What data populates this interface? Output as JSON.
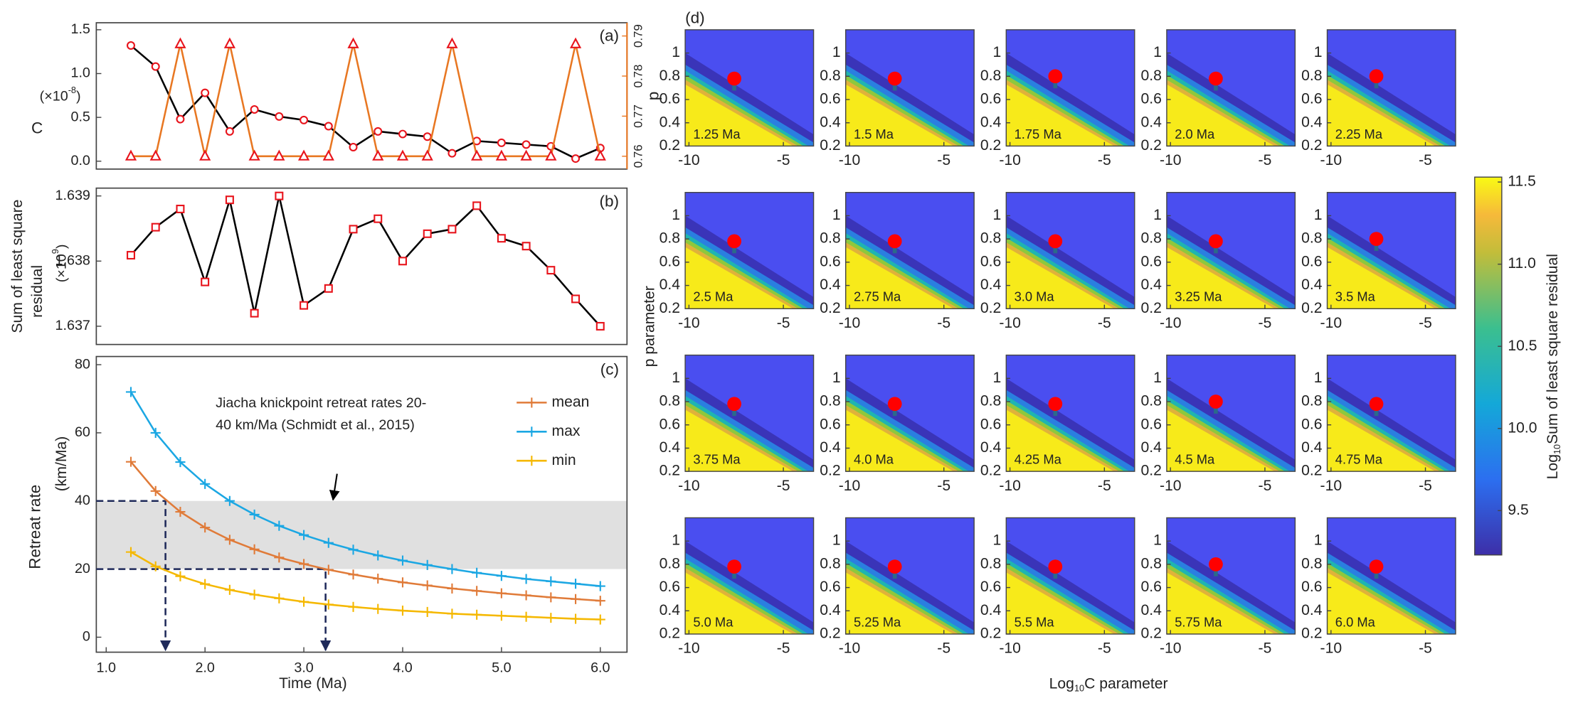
{
  "chart_data": [
    {
      "type": "line",
      "label": "(a)",
      "y_label": "C",
      "y_unit": {
        "base": "(×10",
        "exponent": "-8",
        "close": ")"
      },
      "y2_label": "p",
      "x": [
        1.25,
        1.5,
        1.75,
        2.0,
        2.25,
        2.5,
        2.75,
        3.0,
        3.25,
        3.5,
        3.75,
        4.0,
        4.25,
        4.5,
        4.75,
        5.0,
        5.25,
        5.5,
        5.75,
        6.0
      ],
      "xlim": [
        0.9,
        6.27
      ],
      "ylim": [
        -0.09,
        1.58
      ],
      "yticks": [
        {
          "value": 0,
          "label": "0.0"
        },
        0.5,
        {
          "value": 1,
          "label": "1.0"
        },
        1.5
      ],
      "y2lim": [
        0.7568,
        0.7933
      ],
      "y2ticks": [
        0.76,
        0.77,
        0.78,
        0.79
      ],
      "y2_color": "#e87722",
      "series": [
        {
          "name": "C",
          "color": "#000000",
          "marker": "circle",
          "marker_color": "#e8141c",
          "values": [
            1.32,
            1.08,
            0.48,
            0.78,
            0.34,
            0.59,
            0.51,
            0.47,
            0.4,
            0.16,
            0.34,
            0.31,
            0.28,
            0.09,
            0.23,
            0.21,
            0.19,
            0.17,
            0.03,
            0.15
          ]
        },
        {
          "name": "p",
          "color": "#e87722",
          "marker": "triangle",
          "marker_color": "#e8141c",
          "axis": "y2",
          "values": [
            0.76,
            0.76,
            0.788,
            0.76,
            0.788,
            0.76,
            0.76,
            0.76,
            0.76,
            0.788,
            0.76,
            0.76,
            0.76,
            0.788,
            0.76,
            0.76,
            0.76,
            0.76,
            0.788,
            0.76
          ]
        }
      ]
    },
    {
      "type": "line",
      "label": "(b)",
      "y_label": [
        "Sum of least square",
        "residual"
      ],
      "y_unit": {
        "base": "(×10",
        "exponent": "9",
        "close": ")"
      },
      "x": [
        1.25,
        1.5,
        1.75,
        2.0,
        2.25,
        2.5,
        2.75,
        3.0,
        3.25,
        3.5,
        3.75,
        4.0,
        4.25,
        4.5,
        4.75,
        5.0,
        5.25,
        5.5,
        5.75,
        6.0
      ],
      "xlim": [
        0.9,
        6.27
      ],
      "ylim": [
        1.63672,
        1.63912
      ],
      "yticks": [
        1.637,
        1.638,
        1.639
      ],
      "series": [
        {
          "color": "#000000",
          "marker": "square",
          "marker_color": "#e8141c",
          "values": [
            1.63809,
            1.63852,
            1.6388,
            1.63768,
            1.63894,
            1.6372,
            1.639,
            1.63732,
            1.63758,
            1.63849,
            1.63865,
            1.638,
            1.63842,
            1.63849,
            1.63885,
            1.63835,
            1.63823,
            1.63786,
            1.63742,
            1.637
          ]
        }
      ]
    },
    {
      "type": "line",
      "label": "(c)",
      "x_label": "Time (Ma)",
      "y_label": "Retreat rate",
      "y_unit_text": "(km/Ma)",
      "x": [
        1.25,
        1.5,
        1.75,
        2.0,
        2.25,
        2.5,
        2.75,
        3.0,
        3.25,
        3.5,
        3.75,
        4.0,
        4.25,
        4.5,
        4.75,
        5.0,
        5.25,
        5.5,
        5.75,
        6.0
      ],
      "xlim": [
        0.9,
        6.27
      ],
      "ylim": [
        -4.4,
        82.4
      ],
      "xticks": [
        {
          "value": 1,
          "label": "1.0"
        },
        {
          "value": 2,
          "label": "2.0"
        },
        {
          "value": 3,
          "label": "3.0"
        },
        {
          "value": 4,
          "label": "4.0"
        },
        {
          "value": 5,
          "label": "5.0"
        },
        {
          "value": 6,
          "label": "6.0"
        }
      ],
      "yticks": [
        0,
        20,
        40,
        60,
        80
      ],
      "shaded_range": [
        20,
        40
      ],
      "shaded_color": "#e0e0e0",
      "reference_points": [
        {
          "x": 1.6,
          "y": 40
        },
        {
          "x": 3.22,
          "y": 20
        }
      ],
      "reference_color": "#1f2a5a",
      "annotation": [
        "Jiacha knickpoint retreat rates 20-",
        "40 km/Ma (Schmidt et al., 2015)"
      ],
      "legend": "upper right",
      "series": [
        {
          "name": "mean",
          "color": "#e07b39",
          "marker": "plus",
          "values": [
            51.5,
            42.9,
            36.8,
            32.2,
            28.6,
            25.8,
            23.4,
            21.5,
            19.8,
            18.4,
            17.2,
            16.1,
            15.2,
            14.3,
            13.6,
            12.9,
            12.3,
            11.7,
            11.2,
            10.7
          ]
        },
        {
          "name": "max",
          "color": "#1ba7e3",
          "marker": "plus",
          "values": [
            72,
            60,
            51.4,
            45,
            40,
            36,
            32.7,
            30,
            27.7,
            25.7,
            24,
            22.5,
            21.2,
            20,
            18.9,
            18,
            17.1,
            16.4,
            15.7,
            15
          ]
        },
        {
          "name": "min",
          "color": "#f5b800",
          "marker": "plus",
          "values": [
            25,
            20.8,
            17.9,
            15.6,
            13.9,
            12.5,
            11.4,
            10.4,
            9.6,
            8.9,
            8.3,
            7.8,
            7.4,
            6.9,
            6.6,
            6.3,
            6.0,
            5.7,
            5.4,
            5.2
          ]
        }
      ]
    },
    {
      "type": "heatmap_grid",
      "label": "(d)",
      "x_label": {
        "base": "Log",
        "subscript": "10",
        "rest": "C parameter"
      },
      "y_label": "p parameter",
      "xlim": [
        -10.2,
        -3.4
      ],
      "ylim": [
        0.2,
        1.2
      ],
      "xticks": [
        -10,
        -5
      ],
      "yticks": [
        0.2,
        0.4,
        0.6,
        0.8,
        1
      ],
      "point_color": "#ff0000",
      "panels": [
        {
          "label": "1.25 Ma",
          "best_log10C": -7.6,
          "best_p": 0.78
        },
        {
          "label": "1.5 Ma",
          "best_log10C": -7.6,
          "best_p": 0.78
        },
        {
          "label": "1.75 Ma",
          "best_log10C": -7.6,
          "best_p": 0.8
        },
        {
          "label": "2.0 Ma",
          "best_log10C": -7.6,
          "best_p": 0.78
        },
        {
          "label": "2.25 Ma",
          "best_log10C": -7.6,
          "best_p": 0.8
        },
        {
          "label": "2.5 Ma",
          "best_log10C": -7.6,
          "best_p": 0.78
        },
        {
          "label": "2.75 Ma",
          "best_log10C": -7.6,
          "best_p": 0.78
        },
        {
          "label": "3.0 Ma",
          "best_log10C": -7.6,
          "best_p": 0.78
        },
        {
          "label": "3.25 Ma",
          "best_log10C": -7.6,
          "best_p": 0.78
        },
        {
          "label": "3.5 Ma",
          "best_log10C": -7.6,
          "best_p": 0.8
        },
        {
          "label": "3.75 Ma",
          "best_log10C": -7.6,
          "best_p": 0.78
        },
        {
          "label": "4.0 Ma",
          "best_log10C": -7.6,
          "best_p": 0.78
        },
        {
          "label": "4.25 Ma",
          "best_log10C": -7.6,
          "best_p": 0.78
        },
        {
          "label": "4.5 Ma",
          "best_log10C": -7.6,
          "best_p": 0.8
        },
        {
          "label": "4.75 Ma",
          "best_log10C": -7.6,
          "best_p": 0.78
        },
        {
          "label": "5.0 Ma",
          "best_log10C": -7.6,
          "best_p": 0.78
        },
        {
          "label": "5.25 Ma",
          "best_log10C": -7.6,
          "best_p": 0.78
        },
        {
          "label": "5.5 Ma",
          "best_log10C": -7.6,
          "best_p": 0.78
        },
        {
          "label": "5.75 Ma",
          "best_log10C": -7.6,
          "best_p": 0.8
        },
        {
          "label": "6.0 Ma",
          "best_log10C": -7.6,
          "best_p": 0.78
        }
      ],
      "colorbar": {
        "label": {
          "base": "Log",
          "subscript": "10",
          "rest": "Sum of least square residual"
        },
        "lim": [
          9.23,
          11.53
        ],
        "ticks": [
          9.5,
          {
            "value": 10,
            "label": "10.0"
          },
          10.5,
          {
            "value": 11,
            "label": "11.0"
          },
          11.5
        ]
      }
    }
  ]
}
